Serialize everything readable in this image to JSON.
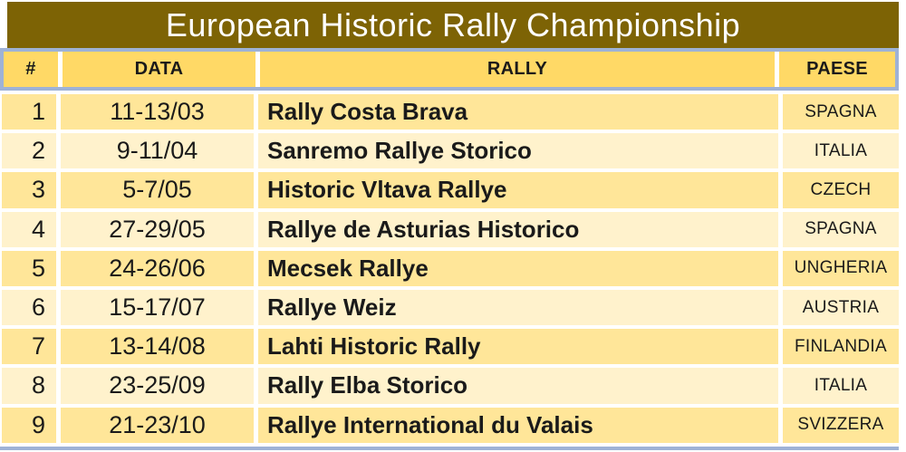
{
  "chart_data": {
    "type": "table",
    "title": "European Historic Rally Championship",
    "columns": [
      "#",
      "DATA",
      "RALLY",
      "PAESE"
    ],
    "rows": [
      [
        "1",
        "11-13/03",
        "Rally Costa Brava",
        "SPAGNA"
      ],
      [
        "2",
        "9-11/04",
        "Sanremo Rallye Storico",
        "ITALIA"
      ],
      [
        "3",
        "5-7/05",
        "Historic Vltava Rallye",
        "CZECH"
      ],
      [
        "4",
        "27-29/05",
        "Rallye de Asturias Historico",
        "SPAGNA"
      ],
      [
        "5",
        "24-26/06",
        "Mecsek Rallye",
        "UNGHERIA"
      ],
      [
        "6",
        "15-17/07",
        "Rallye Weiz",
        "AUSTRIA"
      ],
      [
        "7",
        "13-14/08",
        "Lahti Historic Rally",
        "FINLANDIA"
      ],
      [
        "8",
        "23-25/09",
        "Rally Elba Storico",
        "ITALIA"
      ],
      [
        "9",
        "21-23/10",
        "Rallye International du Valais",
        "SVIZZERA"
      ]
    ]
  },
  "colors": {
    "title_bg": "#7D6305",
    "title_text": "#FFFFFF",
    "header_bg": "#FFD966",
    "row_odd_bg": "#FFE699",
    "row_even_bg": "#FFF2CC",
    "border_blue": "#9EB2D6",
    "text": "#1A1A1A"
  }
}
